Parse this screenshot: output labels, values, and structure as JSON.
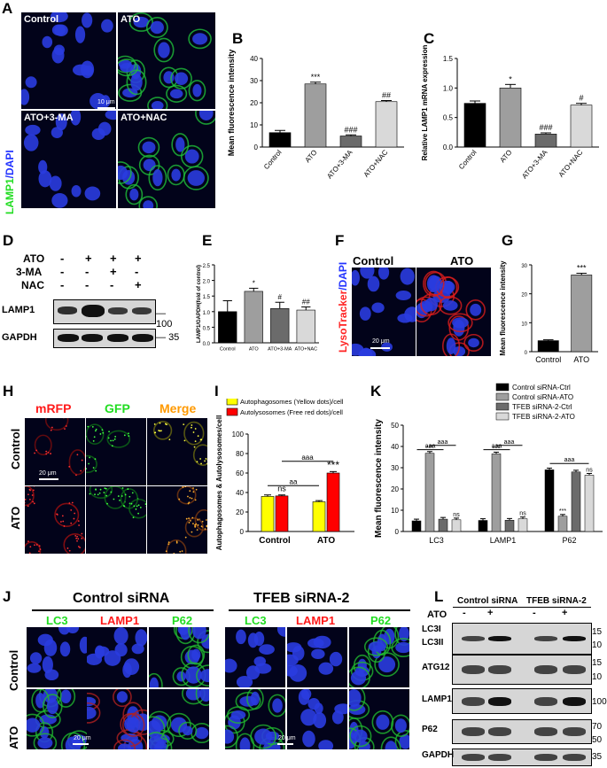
{
  "panel_labels": {
    "A": "A",
    "B": "B",
    "C": "C",
    "D": "D",
    "E": "E",
    "F": "F",
    "G": "G",
    "H": "H",
    "I": "I",
    "K": "K",
    "J": "J",
    "L": "L"
  },
  "panelA": {
    "ylabel_green": "LAMP1",
    "ylabel_blue": "/DAPI",
    "images": [
      "Control",
      "ATO",
      "ATO+3-MA",
      "ATO+NAC"
    ],
    "scalebar": "10 μm"
  },
  "chart_data": [
    {
      "id": "B",
      "type": "bar",
      "categories": [
        "Control",
        "ATO",
        "ATO+3-MA",
        "ATO+NAC"
      ],
      "values": [
        6.5,
        28.5,
        5,
        20.5
      ],
      "errors": [
        1,
        0.8,
        0.5,
        0.5
      ],
      "colors": [
        "#000000",
        "#9e9e9e",
        "#6b6b6b",
        "#d9d9d9"
      ],
      "annotations": [
        "",
        "***",
        "###",
        "##"
      ],
      "ylabel": "Mean fluorescence intensity",
      "ylim": [
        0,
        40
      ],
      "yticks": [
        "0",
        "10",
        "20",
        "30",
        "40"
      ]
    },
    {
      "id": "C",
      "type": "bar",
      "categories": [
        "Control",
        "ATO",
        "ATO+3-MA",
        "ATO+NAC"
      ],
      "values": [
        0.74,
        1.0,
        0.22,
        0.71
      ],
      "errors": [
        0.04,
        0.06,
        0.02,
        0.03
      ],
      "colors": [
        "#000000",
        "#9e9e9e",
        "#6b6b6b",
        "#d9d9d9"
      ],
      "annotations": [
        "",
        "*",
        "###",
        "#"
      ],
      "ylabel": "Relative LAMP1 mRNA expression",
      "ylim": [
        0,
        1.5
      ],
      "yticks": [
        "0.0",
        "0.5",
        "1.0",
        "1.5"
      ]
    },
    {
      "id": "E",
      "type": "bar",
      "categories": [
        "Control",
        "ATO",
        "ATO+3-MA",
        "ATO+NAC"
      ],
      "values": [
        1.0,
        1.65,
        1.1,
        1.05
      ],
      "errors": [
        0.35,
        0.1,
        0.2,
        0.1
      ],
      "colors": [
        "#000000",
        "#9e9e9e",
        "#6b6b6b",
        "#d9d9d9"
      ],
      "annotations": [
        "",
        "*",
        "#",
        "##"
      ],
      "ylabel": "LAMP1/GAPDH(fold of control)",
      "ylim": [
        0,
        2.5
      ],
      "yticks": [
        "0.0",
        "0.5",
        "1.0",
        "1.5",
        "2.0",
        "2.5"
      ]
    },
    {
      "id": "G",
      "type": "bar",
      "categories": [
        "Control",
        "ATO"
      ],
      "values": [
        3.8,
        26.5
      ],
      "errors": [
        0.3,
        0.6
      ],
      "colors": [
        "#000000",
        "#9e9e9e"
      ],
      "annotations": [
        "",
        "***"
      ],
      "ylabel": "Mean fluorescence intensity",
      "ylim": [
        0,
        30
      ],
      "yticks": [
        "0",
        "10",
        "20",
        "30"
      ]
    },
    {
      "id": "I",
      "type": "bar",
      "categories": [
        "Control",
        "ATO"
      ],
      "series": [
        {
          "name": "Autophagosomes (Yellow dots)/cell",
          "values": [
            36,
            30.5
          ],
          "errors": [
            1.5,
            1.2
          ],
          "color": "#ffff00"
        },
        {
          "name": "Autolysosomes (Free red dots)/cell",
          "values": [
            36.5,
            60
          ],
          "errors": [
            1,
            1.5
          ],
          "color": "#ff0000"
        }
      ],
      "annotations": [
        "ns",
        "***"
      ],
      "sig_brackets": [
        "aa",
        "aaa"
      ],
      "ylabel": "Autophagosomes & Autolysosomes/cell",
      "ylim": [
        0,
        100
      ],
      "yticks": [
        "0",
        "20",
        "40",
        "60",
        "80",
        "100"
      ]
    },
    {
      "id": "K",
      "type": "bar",
      "categories": [
        "LC3",
        "LAMP1",
        "P62"
      ],
      "series": [
        {
          "name": "Control siRNA-Ctrl",
          "values": [
            5,
            5.2,
            29
          ],
          "color": "#000000"
        },
        {
          "name": "Control siRNA-ATO",
          "values": [
            36.8,
            36.5,
            7.2
          ],
          "color": "#9e9e9e"
        },
        {
          "name": "TFEB siRNA-2-Ctrl",
          "values": [
            5.8,
            5.3,
            28
          ],
          "color": "#6b6b6b"
        },
        {
          "name": "TFEB siRNA-2-ATO",
          "values": [
            5.5,
            6,
            26.5
          ],
          "color": "#d9d9d9"
        }
      ],
      "annotations": {
        "LC3": [
          "",
          "***",
          "",
          "ns"
        ],
        "LAMP1": [
          "",
          "***",
          "",
          "ns"
        ],
        "P62": [
          "",
          "***",
          "",
          "ns"
        ]
      },
      "sig_brackets": [
        "aaa",
        "aaa",
        "aaa",
        "aaa",
        "aaa"
      ],
      "ylabel": "Mean fluorescence intensity",
      "ylim": [
        0,
        50
      ],
      "yticks": [
        "0",
        "10",
        "20",
        "30",
        "40",
        "50"
      ]
    }
  ],
  "panelD": {
    "rows": [
      {
        "label": "ATO",
        "marks": [
          "-",
          "+",
          "+",
          "+"
        ]
      },
      {
        "label": "3-MA",
        "marks": [
          "-",
          "-",
          "+",
          "-"
        ]
      },
      {
        "label": "NAC",
        "marks": [
          "-",
          "-",
          "-",
          "+"
        ]
      }
    ],
    "blots": [
      {
        "name": "LAMP1",
        "mw": "100"
      },
      {
        "name": "GAPDH",
        "mw": "35"
      }
    ]
  },
  "panelF": {
    "ylabel_red": "LysoTracker",
    "ylabel_blue": "/DAPI",
    "titles": [
      "Control",
      "ATO"
    ],
    "scalebar": "20 μm"
  },
  "panelH": {
    "cols": [
      "mRFP",
      "GFP",
      "Merge"
    ],
    "rows": [
      "Control",
      "ATO"
    ],
    "scalebar": "20 μm"
  },
  "panelJ": {
    "groups": [
      "Control siRNA",
      "TFEB siRNA-2"
    ],
    "cols": [
      "LC3",
      "LAMP1",
      "P62"
    ],
    "rows": [
      "Control",
      "ATO"
    ],
    "scalebar": "20 μm"
  },
  "panelL": {
    "groups": [
      "Control siRNA",
      "TFEB siRNA-2"
    ],
    "ato_label": "ATO",
    "ato_marks": [
      "-",
      "+",
      "-",
      "+"
    ],
    "blots": [
      {
        "name": "LC3I",
        "name2": "LC3II",
        "mw": [
          "15",
          "10"
        ]
      },
      {
        "name": "ATG12",
        "mw": [
          "15",
          "10"
        ]
      },
      {
        "name": "LAMP1",
        "mw": [
          "100"
        ]
      },
      {
        "name": "P62",
        "mw": [
          "70",
          "50"
        ]
      },
      {
        "name": "GAPDH",
        "mw": [
          "35"
        ]
      }
    ]
  }
}
